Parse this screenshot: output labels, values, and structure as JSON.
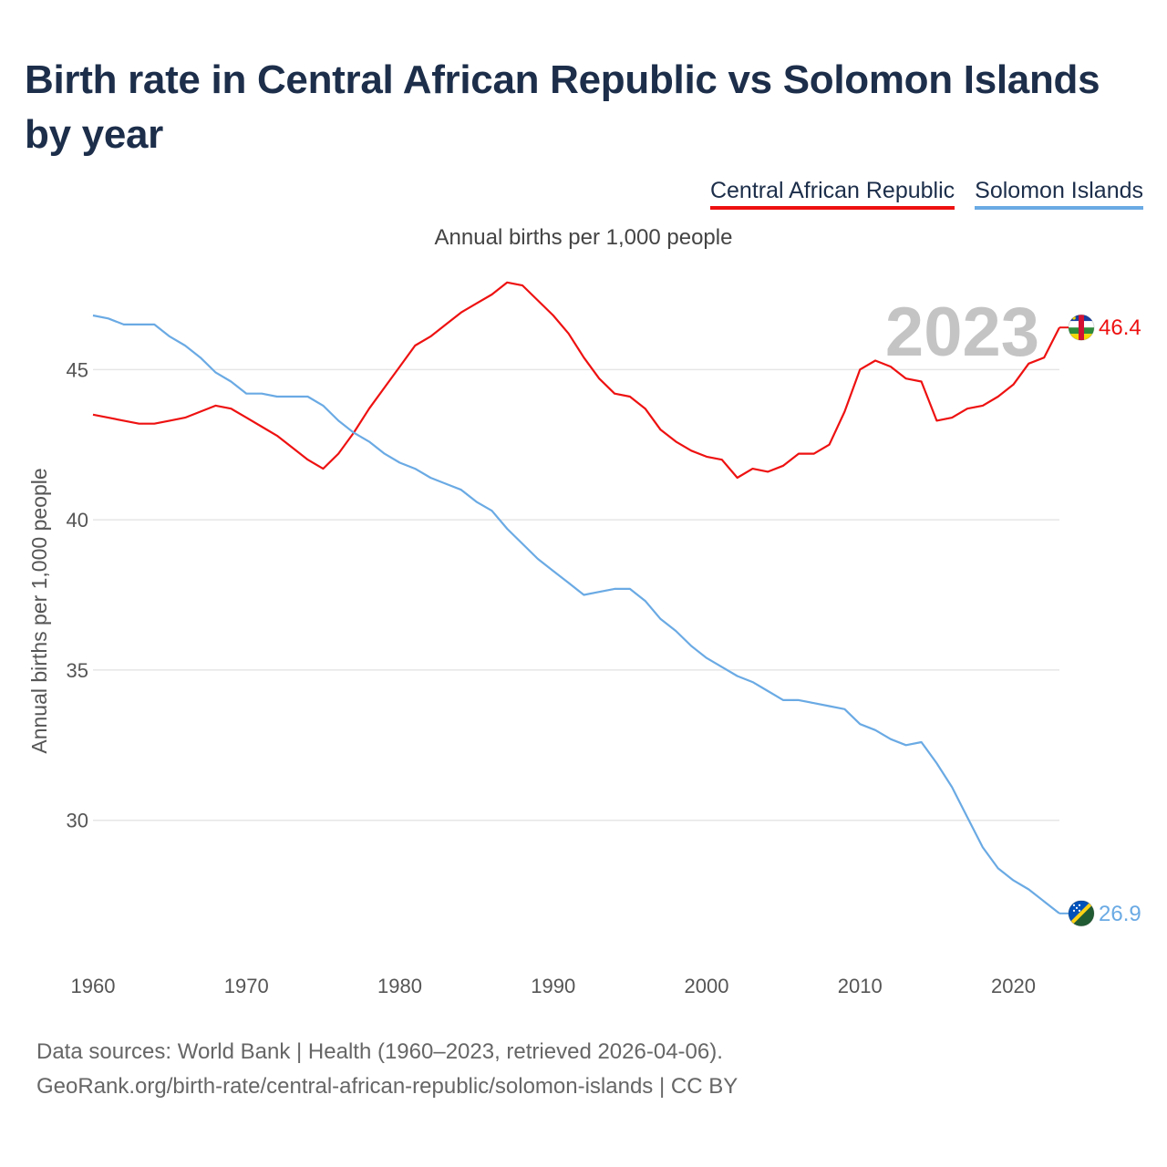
{
  "title": "Birth rate in Central African Republic vs Solomon Islands by year",
  "subtitle": "Annual births per 1,000 people",
  "legend": [
    {
      "name": "Central African Republic",
      "color": "#ee1111"
    },
    {
      "name": "Solomon Islands",
      "color": "#6aaae4"
    }
  ],
  "year_display": "2023",
  "source": {
    "line1": "Data sources: World Bank | Health (1960–2023, retrieved 2026-04-06).",
    "line2": "GeoRank.org/birth-rate/central-african-republic/solomon-islands | CC BY"
  },
  "chart_data": {
    "type": "line",
    "title": "Birth rate in Central African Republic vs Solomon Islands by year",
    "xlabel": "",
    "ylabel": "Annual births per 1,000 people",
    "xlim": [
      1960,
      2023
    ],
    "ylim": [
      25.5,
      48.5
    ],
    "xticks": [
      1960,
      1970,
      1980,
      1990,
      2000,
      2010,
      2020
    ],
    "yticks": [
      30,
      35,
      40,
      45
    ],
    "grid": true,
    "x": [
      1960,
      1961,
      1962,
      1963,
      1964,
      1965,
      1966,
      1967,
      1968,
      1969,
      1970,
      1971,
      1972,
      1973,
      1974,
      1975,
      1976,
      1977,
      1978,
      1979,
      1980,
      1981,
      1982,
      1983,
      1984,
      1985,
      1986,
      1987,
      1988,
      1989,
      1990,
      1991,
      1992,
      1993,
      1994,
      1995,
      1996,
      1997,
      1998,
      1999,
      2000,
      2001,
      2002,
      2003,
      2004,
      2005,
      2006,
      2007,
      2008,
      2009,
      2010,
      2011,
      2012,
      2013,
      2014,
      2015,
      2016,
      2017,
      2018,
      2019,
      2020,
      2021,
      2022,
      2023
    ],
    "series": [
      {
        "name": "Central African Republic",
        "color": "#ee1111",
        "end_label": "46.4",
        "flag": "cf",
        "values": [
          43.5,
          43.4,
          43.3,
          43.2,
          43.2,
          43.3,
          43.4,
          43.6,
          43.8,
          43.7,
          43.4,
          43.1,
          42.8,
          42.4,
          42.0,
          41.7,
          42.2,
          42.9,
          43.7,
          44.4,
          45.1,
          45.8,
          46.1,
          46.5,
          46.9,
          47.2,
          47.5,
          47.9,
          47.8,
          47.3,
          46.8,
          46.2,
          45.4,
          44.7,
          44.2,
          44.1,
          43.7,
          43.0,
          42.6,
          42.3,
          42.1,
          42.0,
          41.4,
          41.7,
          41.6,
          41.8,
          42.2,
          42.2,
          42.5,
          43.6,
          45.0,
          45.3,
          45.1,
          44.7,
          44.6,
          43.3,
          43.4,
          43.7,
          43.8,
          44.1,
          44.5,
          45.2,
          45.4,
          46.4
        ]
      },
      {
        "name": "Solomon Islands",
        "color": "#6aaae4",
        "end_label": "26.9",
        "flag": "sb",
        "values": [
          46.8,
          46.7,
          46.5,
          46.5,
          46.5,
          46.1,
          45.8,
          45.4,
          44.9,
          44.6,
          44.2,
          44.2,
          44.1,
          44.1,
          44.1,
          43.8,
          43.3,
          42.9,
          42.6,
          42.2,
          41.9,
          41.7,
          41.4,
          41.2,
          41.0,
          40.6,
          40.3,
          39.7,
          39.2,
          38.7,
          38.3,
          37.9,
          37.5,
          37.6,
          37.7,
          37.7,
          37.3,
          36.7,
          36.3,
          35.8,
          35.4,
          35.1,
          34.8,
          34.6,
          34.3,
          34.0,
          34.0,
          33.9,
          33.8,
          33.7,
          33.2,
          33.0,
          32.7,
          32.5,
          32.6,
          31.9,
          31.1,
          30.1,
          29.1,
          28.4,
          28.0,
          27.7,
          27.3,
          26.9
        ]
      }
    ]
  }
}
